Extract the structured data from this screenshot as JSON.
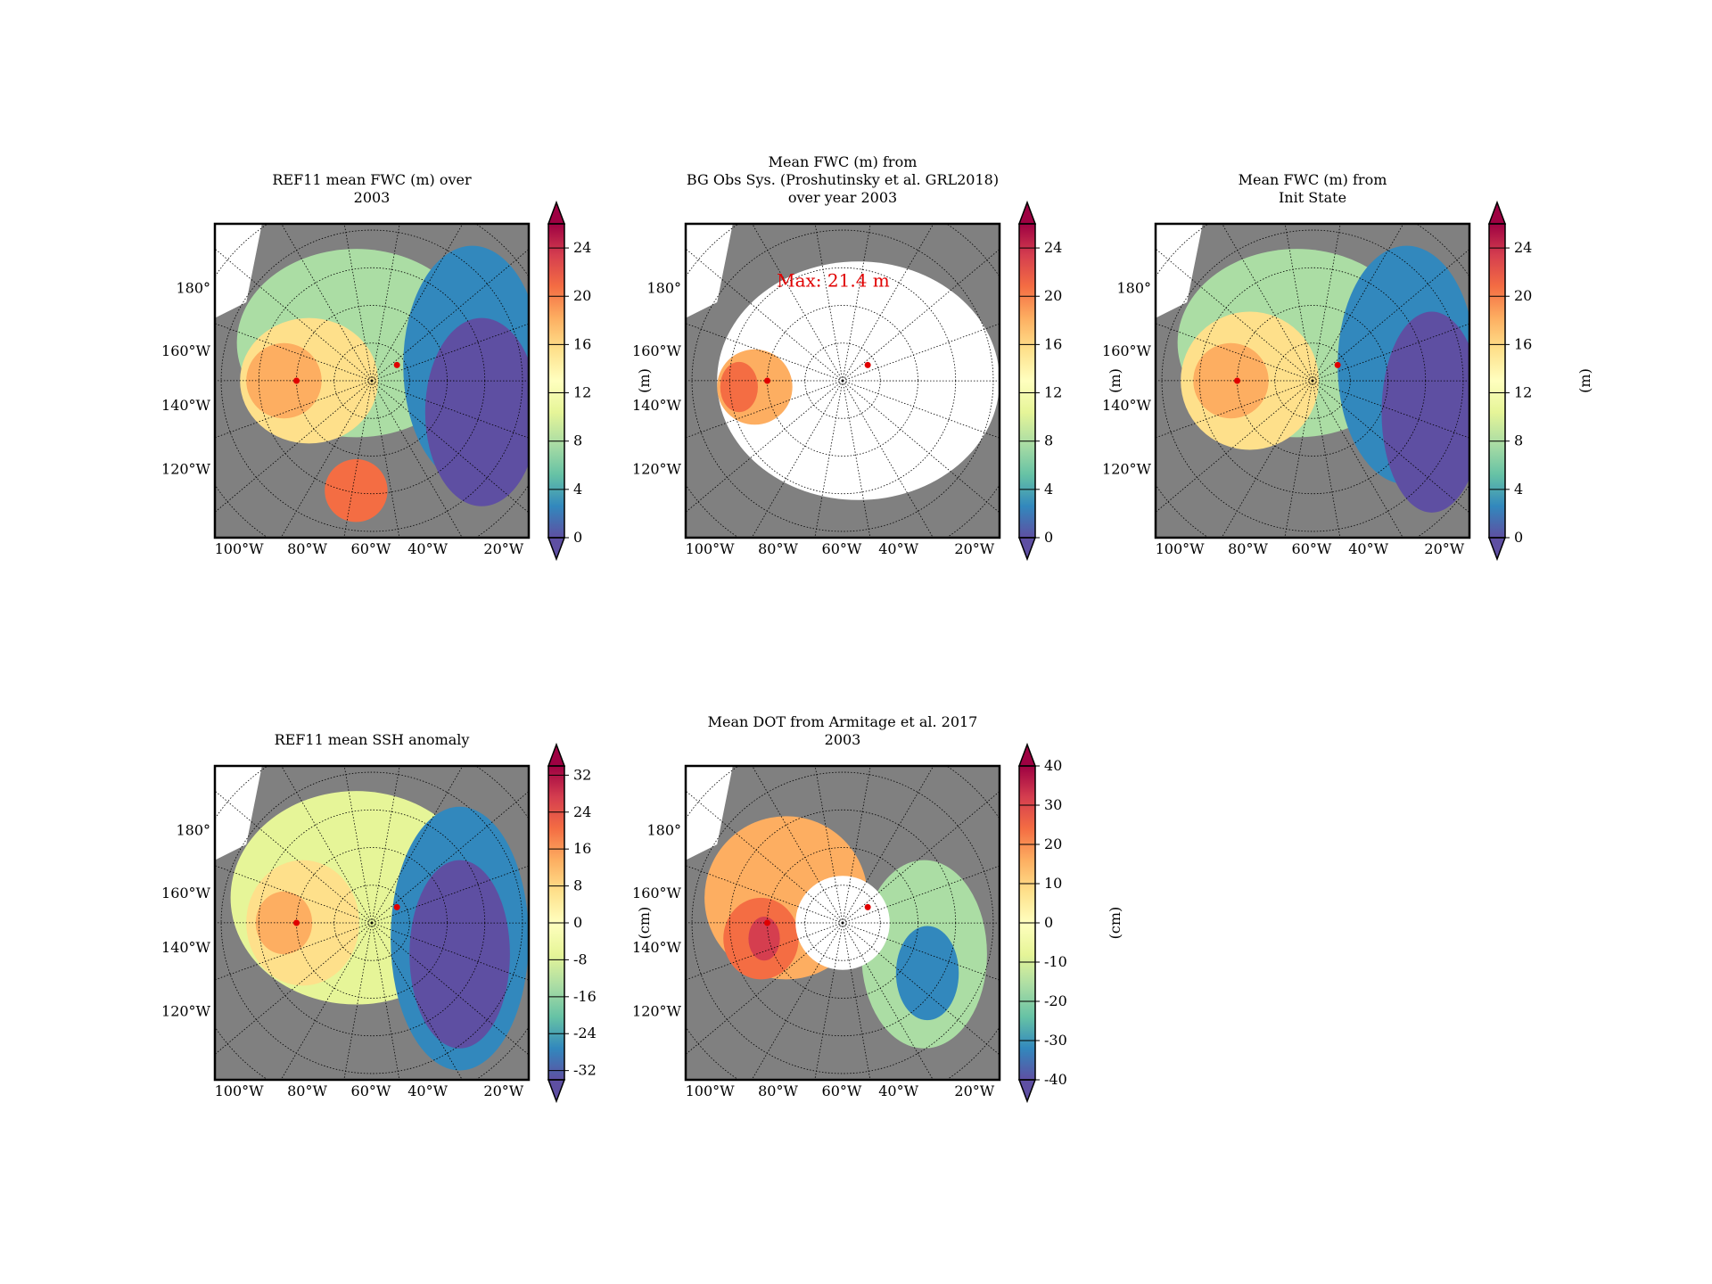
{
  "lon_labels": [
    "100°W",
    "80°W",
    "60°W",
    "40°W",
    "20°W"
  ],
  "lat_labels": [
    "180°",
    "160°W",
    "140°W",
    "120°W"
  ],
  "panels": [
    {
      "title": [
        "REF11 mean FWC (m) over",
        "2003"
      ],
      "colorbar": {
        "label": "(m)",
        "lim": [
          0,
          26
        ],
        "ticks": [
          0,
          4,
          8,
          12,
          16,
          20,
          24
        ],
        "colors": [
          "#5e4fa2",
          "#3288bd",
          "#66c2a5",
          "#abdda4",
          "#e6f598",
          "#ffffbf",
          "#fee08b",
          "#fdae61",
          "#f46d43",
          "#d53e4f",
          "#9e0142"
        ]
      }
    },
    {
      "title": [
        "Mean FWC (m) from",
        "BG Obs Sys. (Proshutinsky et al. GRL2018)",
        "over year 2003"
      ],
      "annotation": "Max: 21.4 m",
      "colorbar": {
        "label": "(m)",
        "lim": [
          0,
          26
        ],
        "ticks": [
          0,
          4,
          8,
          12,
          16,
          20,
          24
        ],
        "colors": [
          "#5e4fa2",
          "#3288bd",
          "#66c2a5",
          "#abdda4",
          "#e6f598",
          "#ffffbf",
          "#fee08b",
          "#fdae61",
          "#f46d43",
          "#d53e4f",
          "#9e0142"
        ]
      }
    },
    {
      "title": [
        "Mean FWC (m) from",
        "Init State"
      ],
      "colorbar": {
        "label": "(m)",
        "lim": [
          0,
          26
        ],
        "ticks": [
          0,
          4,
          8,
          12,
          16,
          20,
          24
        ],
        "colors": [
          "#5e4fa2",
          "#3288bd",
          "#66c2a5",
          "#abdda4",
          "#e6f598",
          "#ffffbf",
          "#fee08b",
          "#fdae61",
          "#f46d43",
          "#d53e4f",
          "#9e0142"
        ]
      }
    },
    {
      "title": [
        "REF11 mean SSH anomaly"
      ],
      "colorbar": {
        "label": "(cm)",
        "lim": [
          -34,
          34
        ],
        "ticks": [
          -32,
          -24,
          -16,
          -8,
          0,
          8,
          16,
          24,
          32
        ],
        "colors": [
          "#5e4fa2",
          "#3288bd",
          "#66c2a5",
          "#abdda4",
          "#e6f598",
          "#ffffbf",
          "#fee08b",
          "#fdae61",
          "#f46d43",
          "#d53e4f",
          "#9e0142"
        ]
      }
    },
    {
      "title": [
        "Mean DOT from Armitage et al. 2017",
        "2003"
      ],
      "colorbar": {
        "label": "(cm)",
        "lim": [
          -40,
          40
        ],
        "ticks": [
          -40,
          -30,
          -20,
          -10,
          0,
          10,
          20,
          30,
          40
        ],
        "colors": [
          "#5e4fa2",
          "#3288bd",
          "#66c2a5",
          "#abdda4",
          "#e6f598",
          "#ffffbf",
          "#fee08b",
          "#fdae61",
          "#f46d43",
          "#d53e4f",
          "#9e0142"
        ]
      }
    }
  ]
}
